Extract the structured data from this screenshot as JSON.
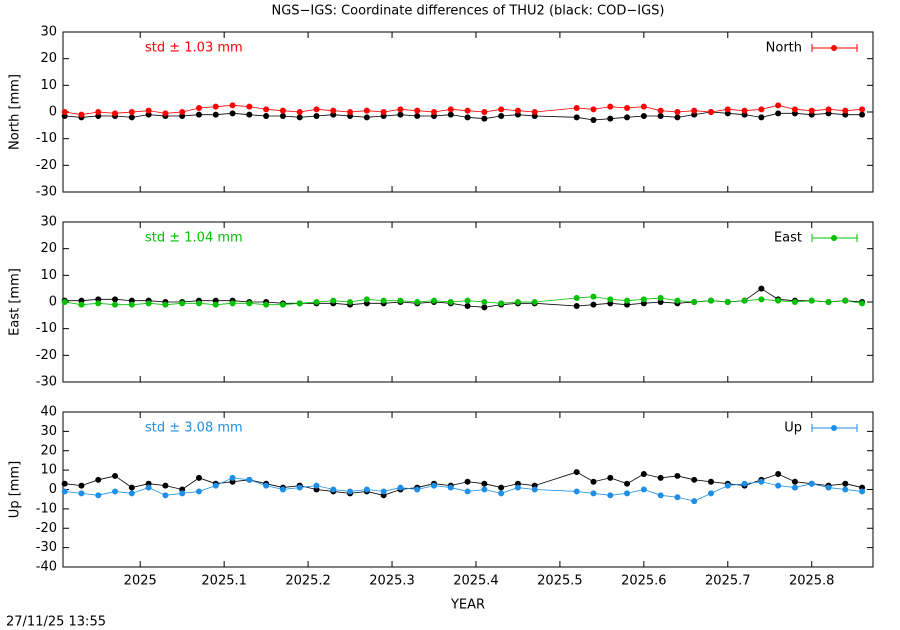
{
  "title": "NGS−IGS: Coordinate differences of THU2 (black: COD−IGS)",
  "timestamp": "27/11/25 13:55",
  "chart_data": [
    {
      "type": "line",
      "ylabel": "North [mm]",
      "annotation": "std ± 1.03 mm",
      "x": [
        2024.91,
        2024.93,
        2024.95,
        2024.97,
        2024.99,
        2025.01,
        2025.03,
        2025.05,
        2025.07,
        2025.09,
        2025.11,
        2025.13,
        2025.15,
        2025.17,
        2025.19,
        2025.21,
        2025.23,
        2025.25,
        2025.27,
        2025.29,
        2025.31,
        2025.33,
        2025.35,
        2025.37,
        2025.39,
        2025.41,
        2025.43,
        2025.45,
        2025.47,
        2025.52,
        2025.54,
        2025.56,
        2025.58,
        2025.6,
        2025.62,
        2025.64,
        2025.66,
        2025.68,
        2025.7,
        2025.72,
        2025.74,
        2025.76,
        2025.78,
        2025.8,
        2025.82,
        2025.84,
        2025.86
      ],
      "xlim": [
        2024.908,
        2025.873
      ],
      "xticks": [
        2025,
        2025.1,
        2025.2,
        2025.3,
        2025.4,
        2025.5,
        2025.6,
        2025.7,
        2025.8
      ],
      "ylim": [
        -30,
        30
      ],
      "yticks": [
        -30,
        -20,
        -10,
        0,
        10,
        20,
        30
      ],
      "series": [
        {
          "color": "#000000",
          "values": [
            -1.5,
            -2,
            -1.5,
            -1.5,
            -2,
            -1,
            -1.5,
            -1.5,
            -1,
            -1,
            -0.5,
            -1,
            -1.5,
            -1.5,
            -2,
            -1.5,
            -1,
            -1.5,
            -2,
            -1.5,
            -1,
            -1.5,
            -1.5,
            -1,
            -2,
            -2.5,
            -1.5,
            -1,
            -1.5,
            -2,
            -3,
            -2.5,
            -2,
            -1.5,
            -1.5,
            -2,
            -1,
            0,
            -0.5,
            -1,
            -2,
            -0.5,
            -0.5,
            -1,
            -0.5,
            -1,
            -1
          ]
        },
        {
          "name": "North",
          "color": "#ff0000",
          "values": [
            0,
            -1,
            0,
            -0.5,
            0,
            0.5,
            -0.5,
            0,
            1.5,
            2,
            2.5,
            2,
            1,
            0.5,
            0,
            1,
            0.5,
            0,
            0.5,
            0,
            1,
            0.5,
            0,
            1,
            0.5,
            0,
            1,
            0.5,
            0,
            1.5,
            1,
            2,
            1.5,
            2,
            0.5,
            0,
            0.5,
            0,
            1,
            0.5,
            1,
            2.5,
            1,
            0.5,
            1,
            0.5,
            1
          ]
        }
      ]
    },
    {
      "type": "line",
      "ylabel": "East [mm]",
      "annotation": "std ± 1.04 mm",
      "x": [
        2024.91,
        2024.93,
        2024.95,
        2024.97,
        2024.99,
        2025.01,
        2025.03,
        2025.05,
        2025.07,
        2025.09,
        2025.11,
        2025.13,
        2025.15,
        2025.17,
        2025.19,
        2025.21,
        2025.23,
        2025.25,
        2025.27,
        2025.29,
        2025.31,
        2025.33,
        2025.35,
        2025.37,
        2025.39,
        2025.41,
        2025.43,
        2025.45,
        2025.47,
        2025.52,
        2025.54,
        2025.56,
        2025.58,
        2025.6,
        2025.62,
        2025.64,
        2025.66,
        2025.68,
        2025.7,
        2025.72,
        2025.74,
        2025.76,
        2025.78,
        2025.8,
        2025.82,
        2025.84,
        2025.86
      ],
      "xlim": [
        2024.908,
        2025.873
      ],
      "xticks": [
        2025,
        2025.1,
        2025.2,
        2025.3,
        2025.4,
        2025.5,
        2025.6,
        2025.7,
        2025.8
      ],
      "ylim": [
        -30,
        30
      ],
      "yticks": [
        -30,
        -20,
        -10,
        0,
        10,
        20,
        30
      ],
      "series": [
        {
          "color": "#000000",
          "values": [
            0.5,
            0.5,
            1,
            1,
            0.5,
            0.5,
            0,
            0,
            0.5,
            0.5,
            0.5,
            0,
            0,
            -0.5,
            -0.5,
            -0.5,
            -0.5,
            -1,
            -0.5,
            -0.5,
            0,
            -0.5,
            0,
            -0.5,
            -1.5,
            -2,
            -1,
            -0.5,
            -0.5,
            -1.5,
            -1,
            -0.5,
            -1,
            -0.5,
            0,
            -0.5,
            0,
            0.5,
            0,
            0.5,
            5,
            1,
            0.5,
            0.5,
            0,
            0.5,
            0
          ]
        },
        {
          "name": "East",
          "color": "#00c000",
          "values": [
            0,
            -1,
            -0.5,
            -1,
            -1,
            -0.5,
            -1,
            -0.5,
            -0.5,
            -1,
            -0.5,
            -0.5,
            -1,
            -1,
            -0.5,
            0,
            0.5,
            0,
            1,
            0.5,
            0.5,
            0,
            0.5,
            0,
            0.5,
            0,
            -0.5,
            0,
            0,
            1.5,
            2,
            1,
            0.5,
            1,
            1.5,
            0.5,
            0,
            0.5,
            0,
            0.5,
            1,
            0.5,
            0,
            0.5,
            0,
            0.5,
            -0.5
          ]
        }
      ]
    },
    {
      "type": "line",
      "ylabel": "Up [mm]",
      "annotation": "std ± 3.08 mm",
      "xlabel": "YEAR",
      "x": [
        2024.91,
        2024.93,
        2024.95,
        2024.97,
        2024.99,
        2025.01,
        2025.03,
        2025.05,
        2025.07,
        2025.09,
        2025.11,
        2025.13,
        2025.15,
        2025.17,
        2025.19,
        2025.21,
        2025.23,
        2025.25,
        2025.27,
        2025.29,
        2025.31,
        2025.33,
        2025.35,
        2025.37,
        2025.39,
        2025.41,
        2025.43,
        2025.45,
        2025.47,
        2025.52,
        2025.54,
        2025.56,
        2025.58,
        2025.6,
        2025.62,
        2025.64,
        2025.66,
        2025.68,
        2025.7,
        2025.72,
        2025.74,
        2025.76,
        2025.78,
        2025.8,
        2025.82,
        2025.84,
        2025.86
      ],
      "xlim": [
        2024.908,
        2025.873
      ],
      "xticks": [
        2025,
        2025.1,
        2025.2,
        2025.3,
        2025.4,
        2025.5,
        2025.6,
        2025.7,
        2025.8
      ],
      "ylim": [
        -40,
        40
      ],
      "yticks": [
        -40,
        -30,
        -20,
        -10,
        0,
        10,
        20,
        30,
        40
      ],
      "series": [
        {
          "color": "#000000",
          "values": [
            3,
            2,
            5,
            7,
            1,
            3,
            2,
            0,
            6,
            3,
            4,
            5,
            3,
            1,
            2,
            0,
            -1,
            -2,
            -1,
            -3,
            0,
            1,
            3,
            2,
            4,
            3,
            1,
            3,
            2,
            9,
            4,
            6,
            3,
            8,
            6,
            7,
            5,
            4,
            3,
            2,
            5,
            8,
            4,
            3,
            2,
            3,
            1
          ]
        },
        {
          "name": "Up",
          "color": "#1e8fe6",
          "values": [
            -1,
            -2,
            -3,
            -1,
            -2,
            1,
            -3,
            -2,
            -1,
            2,
            6,
            5,
            2,
            0,
            1,
            2,
            0,
            -1,
            0,
            -1,
            1,
            0,
            2,
            1,
            -1,
            0,
            -2,
            1,
            0,
            -1,
            -2,
            -3,
            -2,
            0,
            -3,
            -4,
            -6,
            -2,
            2,
            3,
            4,
            2,
            1,
            3,
            1,
            0,
            -1
          ]
        }
      ]
    }
  ]
}
